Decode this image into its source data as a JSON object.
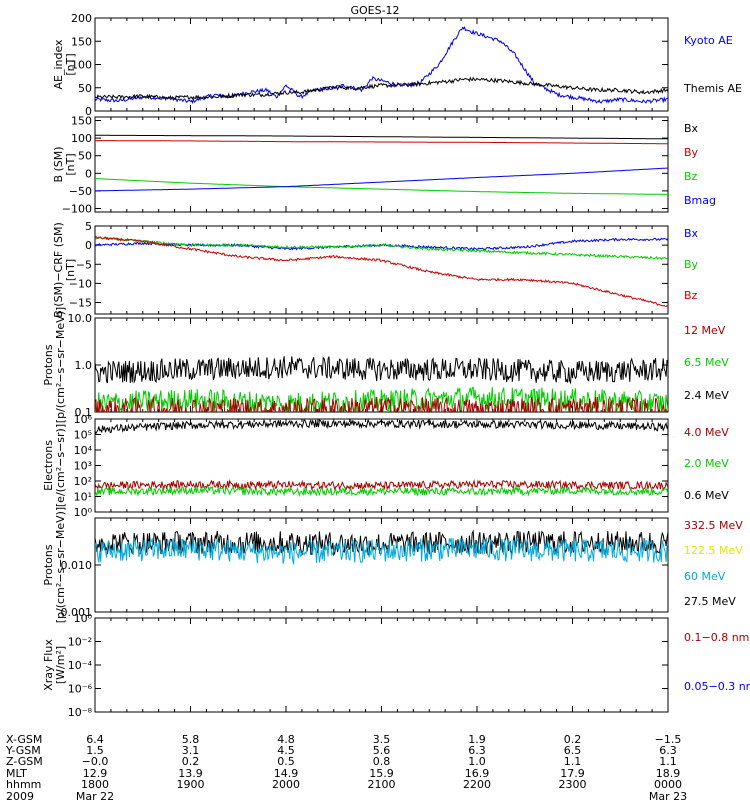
{
  "title": "GOES-12",
  "colors": {
    "black": "#000000",
    "blue": "#0000ee",
    "red": "#cc0000",
    "green": "#00cc00",
    "darkred": "#aa0000",
    "yellow": "#e6e600",
    "cyan": "#00aadd"
  },
  "chart_data": [
    {
      "type": "line",
      "ylabel": "AE_index\n[nT]",
      "ylim": [
        0,
        200
      ],
      "yticks": [
        {
          "v": 0,
          "label": "0"
        },
        {
          "v": 50,
          "label": "50"
        },
        {
          "v": 100,
          "label": "100"
        },
        {
          "v": 150,
          "label": "150"
        },
        {
          "v": 200,
          "label": "200"
        }
      ],
      "legend": [
        "Kyoto AE",
        "Themis AE"
      ],
      "series": [
        {
          "name": "Kyoto AE",
          "color": "#0000ee",
          "x": [
            18.0,
            18.25,
            18.5,
            18.75,
            19.0,
            19.25,
            19.4,
            19.6,
            19.8,
            19.9,
            20.0,
            20.15,
            20.3,
            20.5,
            20.6,
            20.8,
            20.9,
            21.0,
            21.2,
            21.4,
            21.5,
            21.6,
            21.75,
            21.85,
            21.95,
            22.1,
            22.25,
            22.4,
            22.5,
            22.6,
            22.75,
            22.85,
            23.0,
            23.15,
            23.3,
            23.5,
            23.75,
            24.0
          ],
          "y": [
            25,
            22,
            30,
            28,
            20,
            35,
            30,
            40,
            45,
            30,
            55,
            30,
            45,
            50,
            55,
            45,
            70,
            65,
            55,
            60,
            80,
            100,
            150,
            180,
            170,
            160,
            150,
            120,
            90,
            60,
            45,
            35,
            30,
            25,
            20,
            25,
            20,
            25
          ]
        },
        {
          "name": "Themis AE",
          "color": "#000000",
          "x": [
            18.0,
            18.25,
            18.5,
            18.75,
            19.0,
            19.25,
            19.5,
            19.75,
            20.0,
            20.15,
            20.3,
            20.5,
            20.75,
            21.0,
            21.25,
            21.5,
            21.75,
            21.85,
            22.0,
            22.25,
            22.5,
            22.75,
            23.0,
            23.25,
            23.5,
            23.75,
            24.0
          ],
          "y": [
            30,
            30,
            32,
            28,
            30,
            30,
            35,
            35,
            40,
            40,
            45,
            50,
            50,
            55,
            55,
            60,
            65,
            68,
            68,
            65,
            60,
            55,
            50,
            45,
            45,
            40,
            45
          ]
        }
      ]
    },
    {
      "type": "line",
      "ylabel": "B (SM)\n[nT]",
      "ylim": [
        -110,
        160
      ],
      "yticks": [
        {
          "v": -100,
          "label": "−100"
        },
        {
          "v": -50,
          "label": "−50"
        },
        {
          "v": 0,
          "label": "0"
        },
        {
          "v": 50,
          "label": "50"
        },
        {
          "v": 100,
          "label": "100"
        },
        {
          "v": 150,
          "label": "150"
        }
      ],
      "legend": [
        "Bx",
        "By",
        "Bz",
        "Bmag"
      ],
      "series": [
        {
          "name": "Bx",
          "color": "#000000",
          "x": [
            18,
            19,
            20,
            21,
            22,
            23,
            24
          ],
          "y": [
            108,
            107,
            106,
            104,
            102,
            100,
            98
          ]
        },
        {
          "name": "By",
          "color": "#cc0000",
          "x": [
            18,
            19,
            20,
            21,
            22,
            23,
            24
          ],
          "y": [
            93,
            92,
            90,
            89,
            88,
            86,
            84
          ]
        },
        {
          "name": "Bz",
          "color": "#00cc00",
          "x": [
            18,
            19,
            20,
            21,
            22,
            23,
            24
          ],
          "y": [
            -15,
            -28,
            -38,
            -45,
            -52,
            -57,
            -60
          ]
        },
        {
          "name": "Bmag",
          "color": "#0000ee",
          "x": [
            18,
            19,
            20,
            21,
            22,
            23,
            24
          ],
          "y": [
            -50,
            -45,
            -38,
            -25,
            -12,
            0,
            15
          ]
        }
      ]
    },
    {
      "type": "line",
      "ylabel": "B (SM)−CRF (SM)\n[nT]",
      "ylim": [
        -18,
        5
      ],
      "yticks": [
        {
          "v": -15,
          "label": "−15"
        },
        {
          "v": -10,
          "label": "−10"
        },
        {
          "v": -5,
          "label": "−5"
        },
        {
          "v": 0,
          "label": "0"
        },
        {
          "v": 5,
          "label": "5"
        }
      ],
      "legend": [
        "Bx",
        "By",
        "Bz"
      ],
      "series": [
        {
          "name": "Bx",
          "color": "#0000ee",
          "x": [
            18,
            18.5,
            19,
            19.5,
            20,
            20.5,
            21,
            21.5,
            22,
            22.5,
            23,
            23.5,
            24
          ],
          "y": [
            0,
            0.5,
            0,
            0,
            -1,
            -0.5,
            0,
            -0.5,
            -1,
            -0.5,
            1,
            1.5,
            1.5
          ]
        },
        {
          "name": "By",
          "color": "#00cc00",
          "x": [
            18,
            18.5,
            19,
            19.5,
            20,
            20.5,
            21,
            21.5,
            22,
            22.5,
            23,
            23.5,
            24
          ],
          "y": [
            2,
            1,
            0,
            0,
            -0.5,
            -0.5,
            0,
            -1,
            -1.5,
            -2,
            -2.5,
            -3,
            -3.5
          ]
        },
        {
          "name": "Bz",
          "color": "#cc0000",
          "x": [
            18,
            18.5,
            19,
            19.5,
            20,
            20.5,
            21,
            21.5,
            22,
            22.5,
            23,
            23.5,
            24
          ],
          "y": [
            2,
            1,
            -1,
            -3,
            -4,
            -3,
            -4,
            -7,
            -9,
            -9,
            -10,
            -13,
            -16
          ]
        }
      ]
    },
    {
      "type": "line",
      "ylabel": "Protons\n[p/(cm²−s−sr−MeV)]",
      "yscale": "log",
      "ylim": [
        0.1,
        10.0
      ],
      "yticks": [
        {
          "v": 0.1,
          "label": "0.1"
        },
        {
          "v": 1.0,
          "label": "1.0"
        },
        {
          "v": 10.0,
          "label": "10.0"
        }
      ],
      "legend": [
        "12 MeV",
        "6.5 MeV",
        "2.4 MeV"
      ],
      "series": [
        {
          "name": "2.4 MeV",
          "color": "#000000",
          "x": [
            18,
            19,
            20,
            21,
            22,
            23,
            24
          ],
          "y": [
            0.7,
            0.8,
            0.9,
            0.8,
            0.8,
            0.7,
            0.8
          ]
        },
        {
          "name": "6.5 MeV",
          "color": "#00cc00",
          "x": [
            18,
            19,
            20,
            21,
            22,
            23,
            24
          ],
          "y": [
            0.15,
            0.18,
            0.15,
            0.17,
            0.2,
            0.18,
            0.15
          ]
        },
        {
          "name": "12 MeV",
          "color": "#aa0000",
          "x": [
            18,
            19,
            20,
            21,
            22,
            23,
            24
          ],
          "y": [
            0.11,
            0.12,
            0.11,
            0.12,
            0.11,
            0.12,
            0.11
          ]
        }
      ]
    },
    {
      "type": "line",
      "ylabel": "Electrons\n[e/(cm²−s−sr)]",
      "yscale": "log",
      "ylim": [
        1,
        1000000
      ],
      "yticks": [
        {
          "v": 1,
          "label": "10⁰"
        },
        {
          "v": 10,
          "label": "10¹"
        },
        {
          "v": 100,
          "label": "10²"
        },
        {
          "v": 1000,
          "label": "10³"
        },
        {
          "v": 10000,
          "label": "10⁴"
        },
        {
          "v": 100000,
          "label": "10⁵"
        },
        {
          "v": 1000000,
          "label": "10⁶"
        }
      ],
      "legend": [
        "4.0 MeV",
        "2.0 MeV",
        "0.6 MeV"
      ],
      "series": [
        {
          "name": "0.6 MeV",
          "color": "#000000",
          "x": [
            18,
            18.5,
            19,
            20,
            21,
            22,
            23,
            24
          ],
          "y": [
            200000,
            300000,
            400000,
            500000,
            500000,
            450000,
            400000,
            300000
          ]
        },
        {
          "name": "4.0 MeV",
          "color": "#aa0000",
          "x": [
            18,
            19,
            20,
            21,
            22,
            23,
            24
          ],
          "y": [
            50,
            60,
            55,
            50,
            60,
            55,
            50
          ]
        },
        {
          "name": "2.0 MeV",
          "color": "#00cc00",
          "x": [
            18,
            19,
            20,
            21,
            22,
            23,
            24
          ],
          "y": [
            20,
            25,
            20,
            22,
            20,
            25,
            20
          ]
        }
      ]
    },
    {
      "type": "line",
      "ylabel": "Protons\n[p/(cm²−s−sr−MeV)]",
      "yscale": "log",
      "ylim": [
        0.001,
        0.1
      ],
      "yticks": [
        {
          "v": 0.001,
          "label": "0.001"
        },
        {
          "v": 0.01,
          "label": "0.010"
        }
      ],
      "legend": [
        "332.5 MeV",
        "122.5 MeV",
        "60 MeV",
        "27.5 MeV"
      ],
      "series": [
        {
          "name": "27.5 MeV",
          "color": "#000000",
          "x": [
            18,
            19,
            20,
            21,
            22,
            23,
            24
          ],
          "y": [
            0.03,
            0.03,
            0.03,
            0.028,
            0.03,
            0.03,
            0.03
          ]
        },
        {
          "name": "60 MeV",
          "color": "#00aadd",
          "x": [
            18,
            19,
            20,
            21,
            22,
            23,
            24
          ],
          "y": [
            0.02,
            0.022,
            0.018,
            0.02,
            0.022,
            0.02,
            0.02
          ]
        }
      ]
    },
    {
      "type": "line",
      "ylabel": "Xray Flux\n[W/m²]",
      "yscale": "log",
      "ylim": [
        1e-08,
        1
      ],
      "yticks": [
        {
          "v": 1e-08,
          "label": "10⁻⁸"
        },
        {
          "v": 1e-06,
          "label": "10⁻⁶"
        },
        {
          "v": 0.0001,
          "label": "10⁻⁴"
        },
        {
          "v": 0.01,
          "label": "10⁻²"
        },
        {
          "v": 1,
          "label": "10⁰"
        }
      ],
      "legend": [
        "0.1−0.8 nm",
        "0.05−0.3 nm"
      ],
      "series": []
    }
  ],
  "xaxis": {
    "xlim": [
      18.0,
      24.0
    ],
    "row_labels": [
      "X-GSM",
      "Y-GSM",
      "Z-GSM",
      "MLT",
      "hhmm",
      "2009"
    ],
    "ticks": [
      {
        "x": 18,
        "values": [
          "6.4",
          "1.5",
          "−0.0",
          "12.9",
          "1800",
          "Mar 22"
        ]
      },
      {
        "x": 19,
        "values": [
          "5.8",
          "3.1",
          "0.2",
          "13.9",
          "1900",
          ""
        ]
      },
      {
        "x": 20,
        "values": [
          "4.8",
          "4.5",
          "0.5",
          "14.9",
          "2000",
          ""
        ]
      },
      {
        "x": 21,
        "values": [
          "3.5",
          "5.6",
          "0.8",
          "15.9",
          "2100",
          ""
        ]
      },
      {
        "x": 22,
        "values": [
          "1.9",
          "6.3",
          "1.0",
          "16.9",
          "2200",
          ""
        ]
      },
      {
        "x": 23,
        "values": [
          "0.2",
          "6.5",
          "1.1",
          "17.9",
          "2300",
          ""
        ]
      },
      {
        "x": 24,
        "values": [
          "−1.5",
          "6.3",
          "1.1",
          "18.9",
          "0000",
          "Mar 23"
        ]
      }
    ]
  }
}
